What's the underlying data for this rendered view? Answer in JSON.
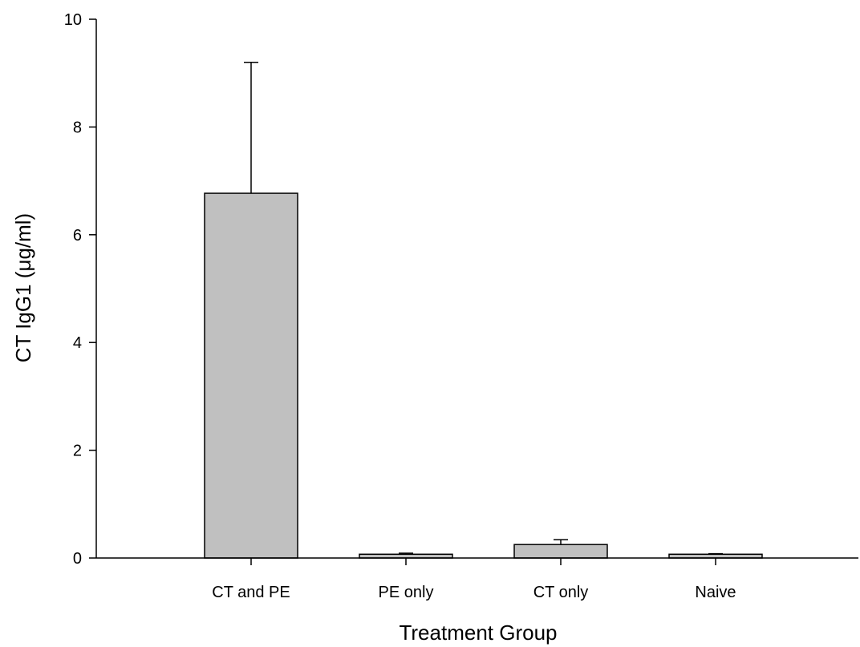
{
  "chart_data": {
    "type": "bar",
    "title": "",
    "xlabel": "Treatment Group",
    "ylabel": "CT IgG1 (μg/ml)",
    "categories": [
      "CT and PE",
      "PE only",
      "CT only",
      "Naive"
    ],
    "values": [
      6.77,
      0.07,
      0.25,
      0.07
    ],
    "error_upper": [
      2.43,
      0.02,
      0.09,
      0.01
    ],
    "ylim": [
      0,
      10
    ],
    "yticks": [
      0,
      2,
      4,
      6,
      8,
      10
    ],
    "grid": false,
    "legend": "none",
    "bar_color": "#c0c0c0",
    "axis_color": "#000000"
  }
}
